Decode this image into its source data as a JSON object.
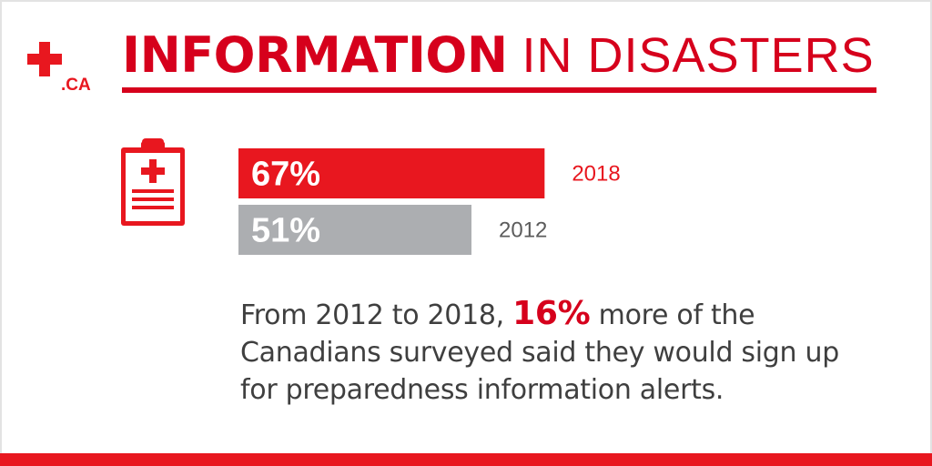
{
  "colors": {
    "brand_red": "#e8171f",
    "title_red": "#d6001c",
    "gray_bar": "#acaeb1",
    "gray_label": "#5c5c5c",
    "text_dark": "#3f3f3f",
    "white": "#ffffff"
  },
  "logo": {
    "text": ".CA",
    "icon": "red-cross-icon"
  },
  "header": {
    "title_bold": "INFORMATION",
    "title_light": " IN DISASTERS"
  },
  "icons": {
    "clipboard": "clipboard-medical-icon"
  },
  "description": {
    "prefix": "From 2012 to 2018, ",
    "highlight": "16%",
    "suffix": " more of the Canadians surveyed said they would sign up for preparedness information alerts."
  },
  "chart_data": {
    "type": "bar",
    "orientation": "horizontal",
    "title": "INFORMATION IN DISASTERS",
    "xlabel": "",
    "ylabel": "",
    "xlim": [
      0,
      100
    ],
    "categories": [
      "2018",
      "2012"
    ],
    "values": [
      67,
      51
    ],
    "labels": [
      "67%",
      "51%"
    ],
    "bar_colors": [
      "#e8171f",
      "#acaeb1"
    ],
    "category_label_colors": [
      "#e8171f",
      "#5c5c5c"
    ],
    "grid": false,
    "legend": "none"
  }
}
